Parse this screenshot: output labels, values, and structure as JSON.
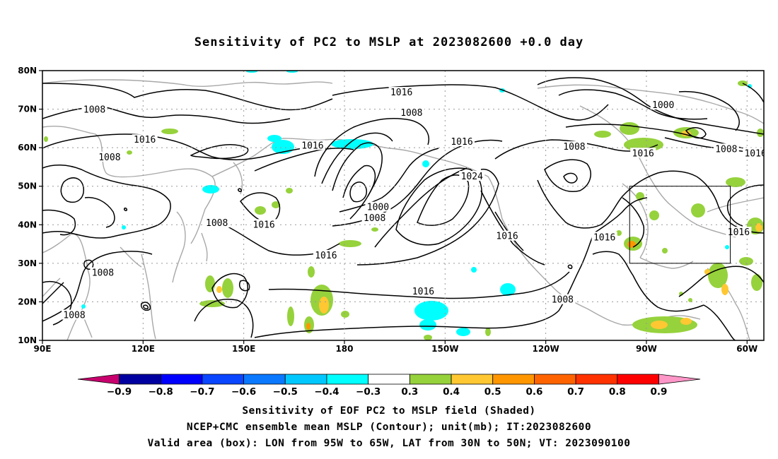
{
  "title": "Sensitivity of PC2 to MSLP at 2023082600 +0.0 day",
  "map": {
    "lat_range": [
      10,
      80
    ],
    "lon_range": [
      90,
      305
    ],
    "lon_ticks": [
      {
        "lon": 90,
        "label": "90E"
      },
      {
        "lon": 120,
        "label": "120E"
      },
      {
        "lon": 150,
        "label": "150E"
      },
      {
        "lon": 180,
        "label": "180"
      },
      {
        "lon": 210,
        "label": "150W"
      },
      {
        "lon": 240,
        "label": "120W"
      },
      {
        "lon": 270,
        "label": "90W"
      },
      {
        "lon": 300,
        "label": "60W"
      }
    ],
    "lat_ticks": [
      {
        "lat": 10,
        "label": "10N"
      },
      {
        "lat": 20,
        "label": "20N"
      },
      {
        "lat": 30,
        "label": "30N"
      },
      {
        "lat": 40,
        "label": "40N"
      },
      {
        "lat": 50,
        "label": "50N"
      },
      {
        "lat": 60,
        "label": "60N"
      },
      {
        "lat": 70,
        "label": "70N"
      },
      {
        "lat": 80,
        "label": "80N"
      }
    ],
    "valid_box": {
      "lon_min": 265,
      "lon_max": 295,
      "lat_min": 30,
      "lat_max": 50
    },
    "contour_labels": [
      {
        "lon": 105.5,
        "lat": 69.8,
        "text": "1008"
      },
      {
        "lon": 120.5,
        "lat": 62.0,
        "text": "1016"
      },
      {
        "lon": 110.0,
        "lat": 57.5,
        "text": "1008"
      },
      {
        "lon": 170.5,
        "lat": 60.5,
        "text": "1016"
      },
      {
        "lon": 197.0,
        "lat": 74.3,
        "text": "1016"
      },
      {
        "lon": 200.0,
        "lat": 69.0,
        "text": "1008"
      },
      {
        "lon": 215.0,
        "lat": 61.5,
        "text": "1016"
      },
      {
        "lon": 248.5,
        "lat": 60.2,
        "text": "1008"
      },
      {
        "lon": 275.0,
        "lat": 71.0,
        "text": "1000"
      },
      {
        "lon": 269.0,
        "lat": 58.5,
        "text": "1016"
      },
      {
        "lon": 293.8,
        "lat": 59.6,
        "text": "1008"
      },
      {
        "lon": 302.5,
        "lat": 58.5,
        "text": "1016"
      },
      {
        "lon": 218.0,
        "lat": 52.5,
        "text": "1024"
      },
      {
        "lon": 190.0,
        "lat": 44.5,
        "text": "1000"
      },
      {
        "lon": 189.0,
        "lat": 41.7,
        "text": "1008"
      },
      {
        "lon": 142.0,
        "lat": 40.4,
        "text": "1008"
      },
      {
        "lon": 156.0,
        "lat": 40.0,
        "text": "1016"
      },
      {
        "lon": 228.5,
        "lat": 37.0,
        "text": "1016"
      },
      {
        "lon": 257.5,
        "lat": 36.7,
        "text": "1016"
      },
      {
        "lon": 297.5,
        "lat": 38.0,
        "text": "1016"
      },
      {
        "lon": 174.5,
        "lat": 32.0,
        "text": "1016"
      },
      {
        "lon": 108.0,
        "lat": 27.5,
        "text": "1008"
      },
      {
        "lon": 203.5,
        "lat": 22.6,
        "text": "1016"
      },
      {
        "lon": 245.0,
        "lat": 20.5,
        "text": "1008"
      },
      {
        "lon": 99.5,
        "lat": 16.5,
        "text": "1008"
      }
    ],
    "positive_color_legend_ref": "0.3-0.9 shading (green/yellow/orange)",
    "negative_color_legend_ref": "-0.9--0.3 shading (cyan/blue)"
  },
  "colorbar": {
    "colors": [
      "#c8006e",
      "#0000a0",
      "#0000ff",
      "#0a45ff",
      "#0a78ff",
      "#00c8ff",
      "#00ffff",
      "#ffffff",
      "#96d23c",
      "#ffc832",
      "#ff9600",
      "#ff6400",
      "#ff3200",
      "#ff0000",
      "#ff96c8"
    ],
    "labels": [
      "-0.9",
      "-0.8",
      "-0.7",
      "-0.6",
      "-0.5",
      "-0.4",
      "-0.3",
      "0.3",
      "0.4",
      "0.5",
      "0.6",
      "0.7",
      "0.8",
      "0.9"
    ]
  },
  "captions": {
    "line1": "Sensitivity of EOF PC2 to MSLP field (Shaded)",
    "line2": "NCEP+CMC ensemble mean MSLP (Contour); unit(mb); IT:2023082600",
    "line3": "Valid area (box): LON from 95W to 65W, LAT from 30N to 50N; VT: 2023090100"
  }
}
